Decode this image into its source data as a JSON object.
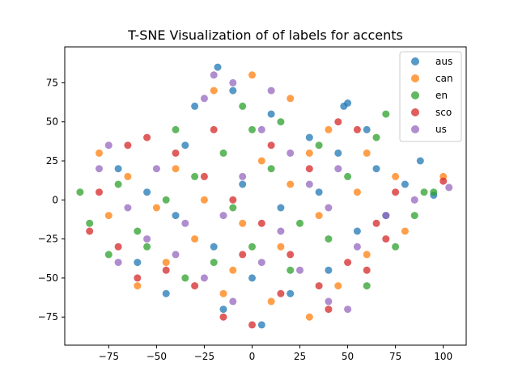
{
  "chart_data": {
    "type": "scatter",
    "title": "T-SNE Visualization of of labels for accents",
    "xlabel": "",
    "ylabel": "",
    "xlim": [
      -98,
      112
    ],
    "ylim": [
      -93,
      98
    ],
    "xticks": [
      -75,
      -50,
      -25,
      0,
      25,
      50,
      75,
      100
    ],
    "yticks": [
      -75,
      -50,
      -25,
      0,
      25,
      50,
      75
    ],
    "xtick_labels": [
      "−75",
      "−50",
      "−25",
      "0",
      "25",
      "50",
      "75",
      "100"
    ],
    "ytick_labels": [
      "−75",
      "−50",
      "−25",
      "0",
      "25",
      "50",
      "75"
    ],
    "grid": false,
    "legend_position": "top-right",
    "series": [
      {
        "name": "aus",
        "color": "#1f77b4",
        "points": [
          [
            50,
            62
          ],
          [
            48,
            60
          ],
          [
            88,
            25
          ],
          [
            -18,
            85
          ],
          [
            -30,
            60
          ],
          [
            -10,
            70
          ],
          [
            10,
            55
          ],
          [
            30,
            40
          ],
          [
            45,
            30
          ],
          [
            60,
            45
          ],
          [
            65,
            20
          ],
          [
            -70,
            20
          ],
          [
            -55,
            5
          ],
          [
            -40,
            -10
          ],
          [
            -20,
            -30
          ],
          [
            0,
            -50
          ],
          [
            20,
            -60
          ],
          [
            40,
            -45
          ],
          [
            55,
            -20
          ],
          [
            70,
            -10
          ],
          [
            -5,
            10
          ],
          [
            15,
            -5
          ],
          [
            -35,
            35
          ],
          [
            35,
            5
          ],
          [
            -60,
            -40
          ],
          [
            -45,
            -60
          ],
          [
            5,
            -80
          ],
          [
            -15,
            -70
          ],
          [
            80,
            10
          ],
          [
            95,
            3
          ]
        ]
      },
      {
        "name": "can",
        "color": "#ff7f0e",
        "points": [
          [
            0,
            80
          ],
          [
            -20,
            70
          ],
          [
            20,
            65
          ],
          [
            40,
            45
          ],
          [
            60,
            30
          ],
          [
            75,
            15
          ],
          [
            100,
            15
          ],
          [
            -80,
            30
          ],
          [
            -65,
            15
          ],
          [
            -50,
            -5
          ],
          [
            -30,
            -25
          ],
          [
            -10,
            -45
          ],
          [
            10,
            -65
          ],
          [
            30,
            -75
          ],
          [
            45,
            -55
          ],
          [
            60,
            -35
          ],
          [
            80,
            -20
          ],
          [
            -40,
            20
          ],
          [
            -25,
            0
          ],
          [
            5,
            25
          ],
          [
            20,
            10
          ],
          [
            35,
            -10
          ],
          [
            -45,
            -40
          ],
          [
            -15,
            -60
          ],
          [
            15,
            -30
          ],
          [
            55,
            5
          ],
          [
            -60,
            -55
          ],
          [
            30,
            30
          ],
          [
            -5,
            -15
          ],
          [
            -75,
            -10
          ]
        ]
      },
      {
        "name": "en",
        "color": "#2ca02c",
        "points": [
          [
            -90,
            5
          ],
          [
            -85,
            -15
          ],
          [
            -75,
            -35
          ],
          [
            -60,
            -20
          ],
          [
            -45,
            0
          ],
          [
            -30,
            15
          ],
          [
            -15,
            30
          ],
          [
            0,
            45
          ],
          [
            -5,
            60
          ],
          [
            15,
            50
          ],
          [
            35,
            35
          ],
          [
            50,
            15
          ],
          [
            65,
            40
          ],
          [
            70,
            55
          ],
          [
            85,
            -10
          ],
          [
            90,
            5
          ],
          [
            95,
            5
          ],
          [
            -70,
            10
          ],
          [
            -55,
            -30
          ],
          [
            -35,
            -50
          ],
          [
            -20,
            -40
          ],
          [
            0,
            -30
          ],
          [
            20,
            -45
          ],
          [
            40,
            -25
          ],
          [
            60,
            -55
          ],
          [
            75,
            -30
          ],
          [
            -40,
            45
          ],
          [
            25,
            -15
          ],
          [
            10,
            20
          ],
          [
            -10,
            -5
          ]
        ]
      },
      {
        "name": "sco",
        "color": "#d62728",
        "points": [
          [
            -80,
            5
          ],
          [
            -70,
            -30
          ],
          [
            -55,
            40
          ],
          [
            -40,
            30
          ],
          [
            -25,
            15
          ],
          [
            -10,
            0
          ],
          [
            5,
            -15
          ],
          [
            20,
            -35
          ],
          [
            35,
            -55
          ],
          [
            50,
            -40
          ],
          [
            65,
            -15
          ],
          [
            75,
            5
          ],
          [
            100,
            12
          ],
          [
            -85,
            -20
          ],
          [
            -60,
            -50
          ],
          [
            -45,
            -45
          ],
          [
            -30,
            -55
          ],
          [
            -15,
            -75
          ],
          [
            0,
            -80
          ],
          [
            15,
            -60
          ],
          [
            40,
            -70
          ],
          [
            55,
            45
          ],
          [
            45,
            50
          ],
          [
            70,
            -25
          ],
          [
            30,
            20
          ],
          [
            -20,
            45
          ],
          [
            10,
            35
          ],
          [
            -5,
            -35
          ],
          [
            60,
            -45
          ],
          [
            -65,
            35
          ]
        ]
      },
      {
        "name": "us",
        "color": "#9467bd",
        "points": [
          [
            -75,
            35
          ],
          [
            -80,
            20
          ],
          [
            -65,
            -5
          ],
          [
            -50,
            20
          ],
          [
            -35,
            -15
          ],
          [
            -20,
            80
          ],
          [
            -25,
            65
          ],
          [
            -10,
            75
          ],
          [
            5,
            45
          ],
          [
            10,
            70
          ],
          [
            20,
            30
          ],
          [
            30,
            10
          ],
          [
            40,
            -5
          ],
          [
            55,
            -30
          ],
          [
            70,
            -10
          ],
          [
            85,
            0
          ],
          [
            103,
            8
          ],
          [
            -70,
            -40
          ],
          [
            -55,
            -25
          ],
          [
            -40,
            -35
          ],
          [
            -25,
            -50
          ],
          [
            -10,
            -65
          ],
          [
            5,
            -40
          ],
          [
            25,
            -45
          ],
          [
            40,
            -65
          ],
          [
            50,
            -70
          ],
          [
            -5,
            15
          ],
          [
            -15,
            -10
          ],
          [
            15,
            -20
          ],
          [
            45,
            20
          ]
        ]
      }
    ]
  }
}
